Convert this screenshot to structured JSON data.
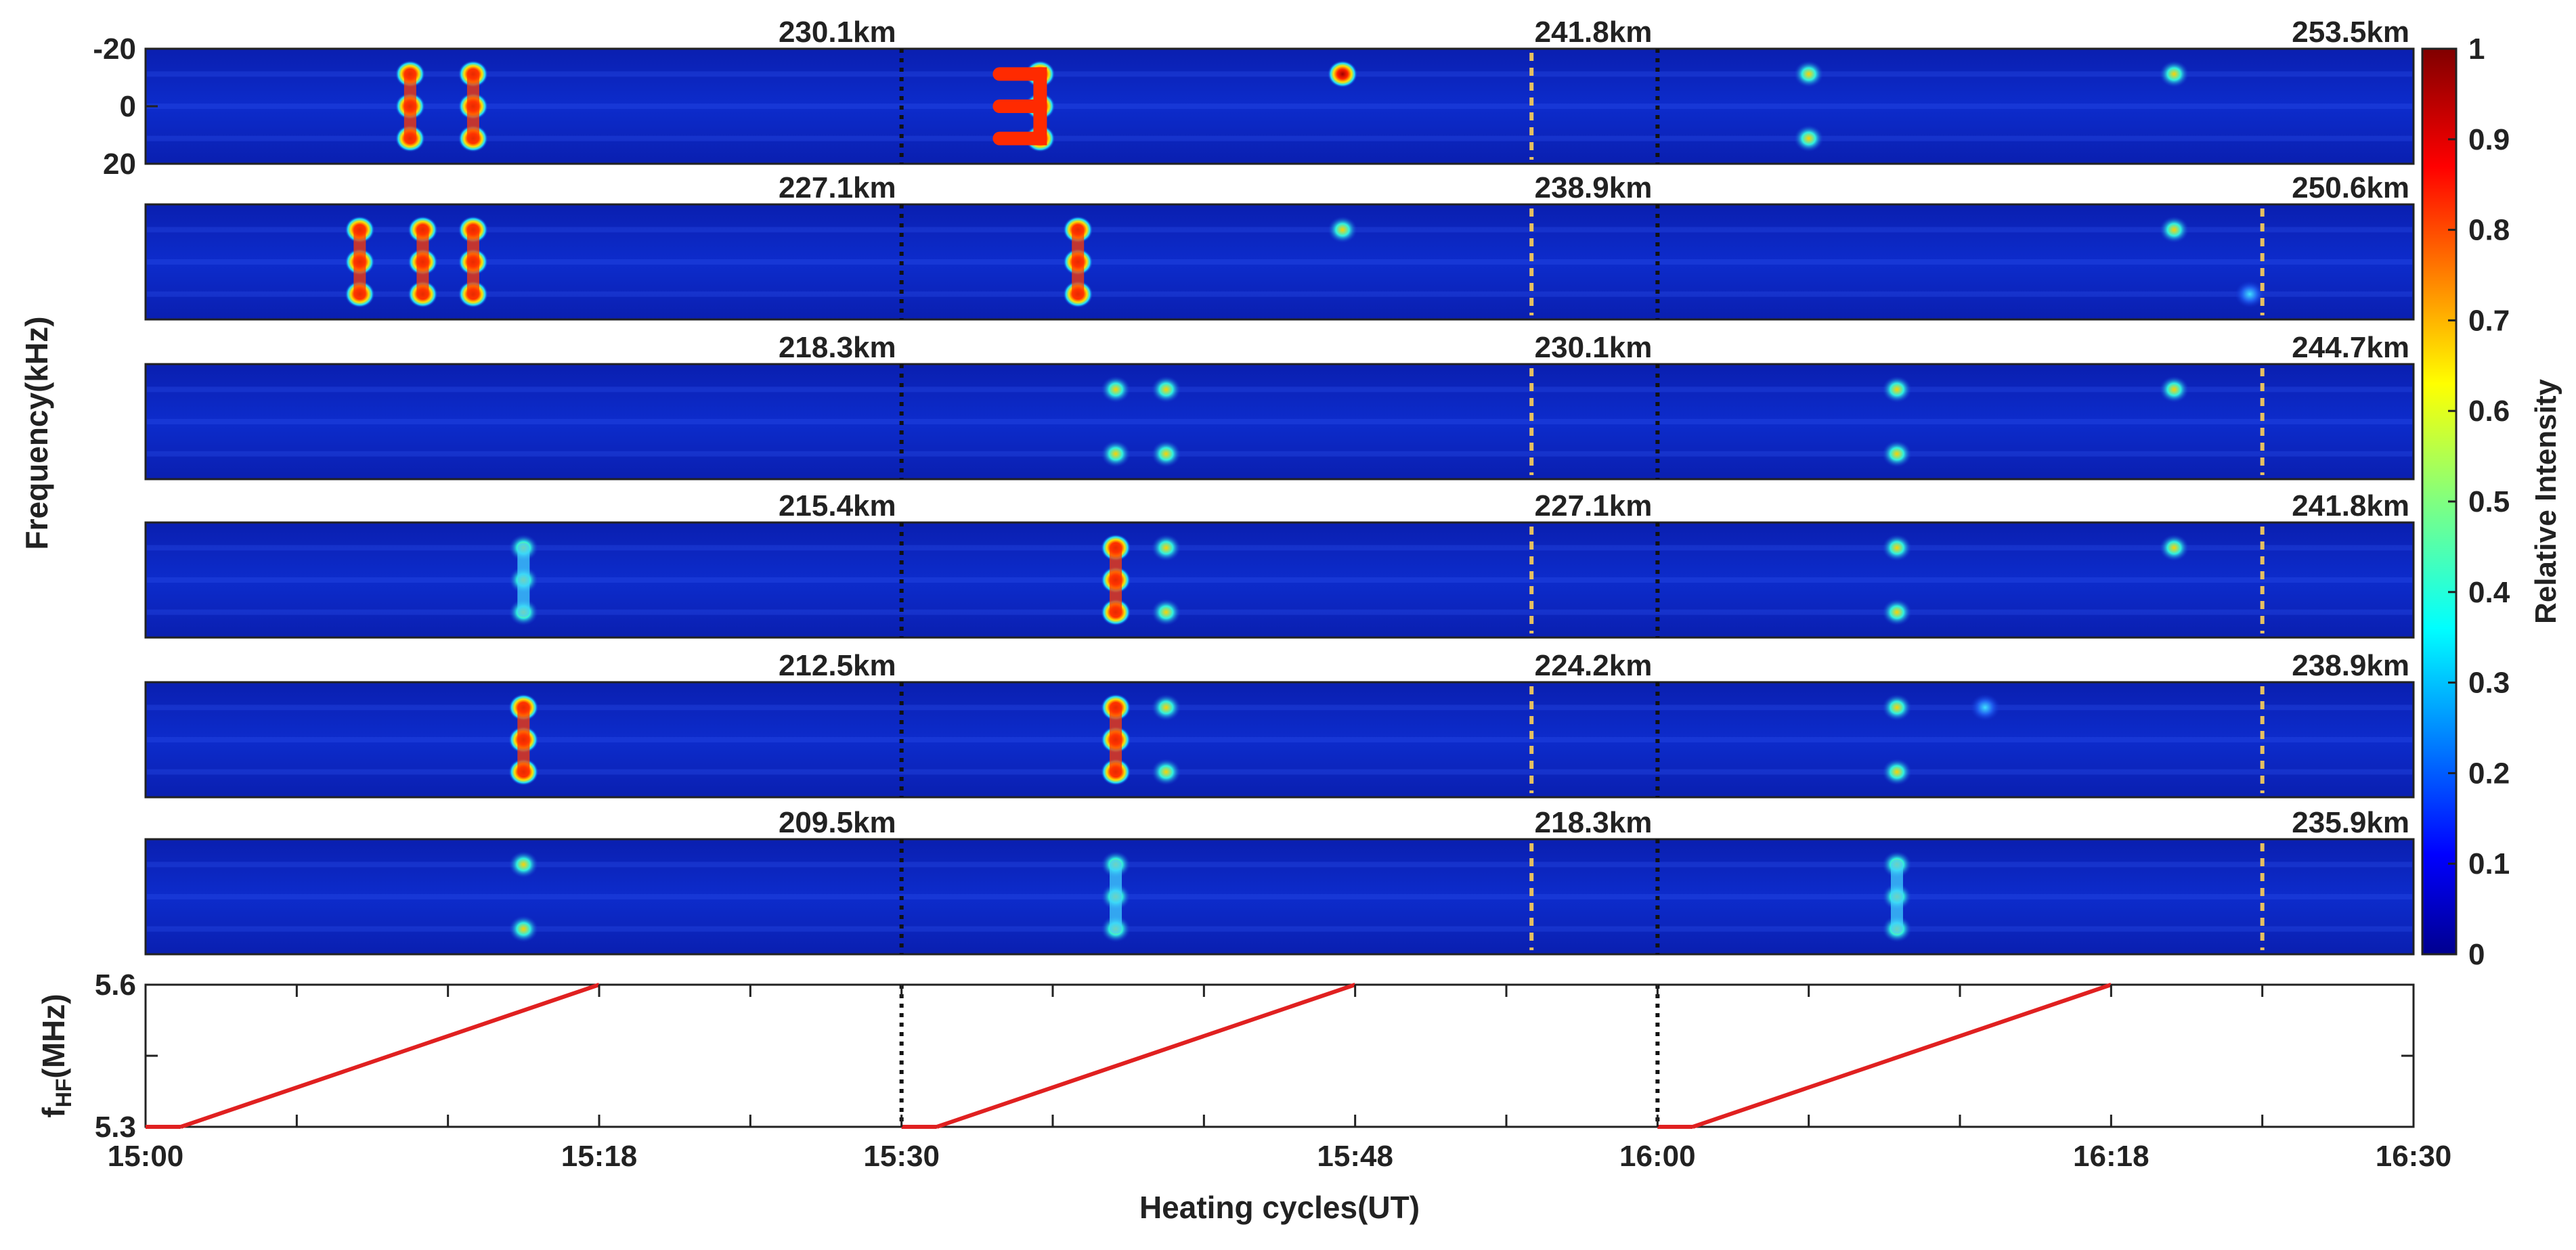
{
  "chart_data": {
    "type": "heatmap",
    "xlabel": "Heating cycles(UT)",
    "x_ticks": [
      "15:00",
      "15:18",
      "15:30",
      "15:48",
      "16:00",
      "16:18",
      "16:30"
    ],
    "x_tick_minutes": [
      0,
      18,
      30,
      48,
      60,
      78,
      90
    ],
    "xlim_minutes": [
      0,
      90
    ],
    "cycle_boundaries_minutes": [
      30,
      60
    ],
    "ylabel": "Frequency(kHz)",
    "y_ticks": [
      "-20",
      "0",
      "20"
    ],
    "ylim_khz": [
      -20,
      20
    ],
    "colorbar": {
      "label": "Relative Intensity",
      "ticks": [
        "0",
        "0.1",
        "0.2",
        "0.3",
        "0.4",
        "0.5",
        "0.6",
        "0.7",
        "0.8",
        "0.9",
        "1"
      ],
      "range": [
        0,
        1
      ],
      "colormap": "jet"
    },
    "panels": [
      {
        "altitudes": [
          "230.1km",
          "241.8km",
          "253.5km"
        ]
      },
      {
        "altitudes": [
          "227.1km",
          "238.9km",
          "250.6km"
        ]
      },
      {
        "altitudes": [
          "218.3km",
          "230.1km",
          "244.7km"
        ]
      },
      {
        "altitudes": [
          "215.4km",
          "227.1km",
          "241.8km"
        ]
      },
      {
        "altitudes": [
          "212.5km",
          "224.2km",
          "238.9km"
        ]
      },
      {
        "altitudes": [
          "209.5km",
          "218.3km",
          "235.9km"
        ]
      }
    ],
    "heating_frequency": {
      "ylabel": "f_HF(MHz)",
      "ylabel_main": "f",
      "ylabel_sub": "HF",
      "ylabel_unit": "(MHz)",
      "y_ticks": [
        "5.3",
        "5.6"
      ],
      "ylim": [
        5.3,
        5.6
      ],
      "line_color": "#e02020",
      "sweeps": [
        {
          "start_minute": 1.4,
          "end_minute": 18,
          "f_start": 5.3,
          "f_end": 5.6
        },
        {
          "start_minute": 31.4,
          "end_minute": 48,
          "f_start": 5.3,
          "f_end": 5.6
        },
        {
          "start_minute": 61.4,
          "end_minute": 78,
          "f_start": 5.3,
          "f_end": 5.6
        }
      ]
    }
  }
}
